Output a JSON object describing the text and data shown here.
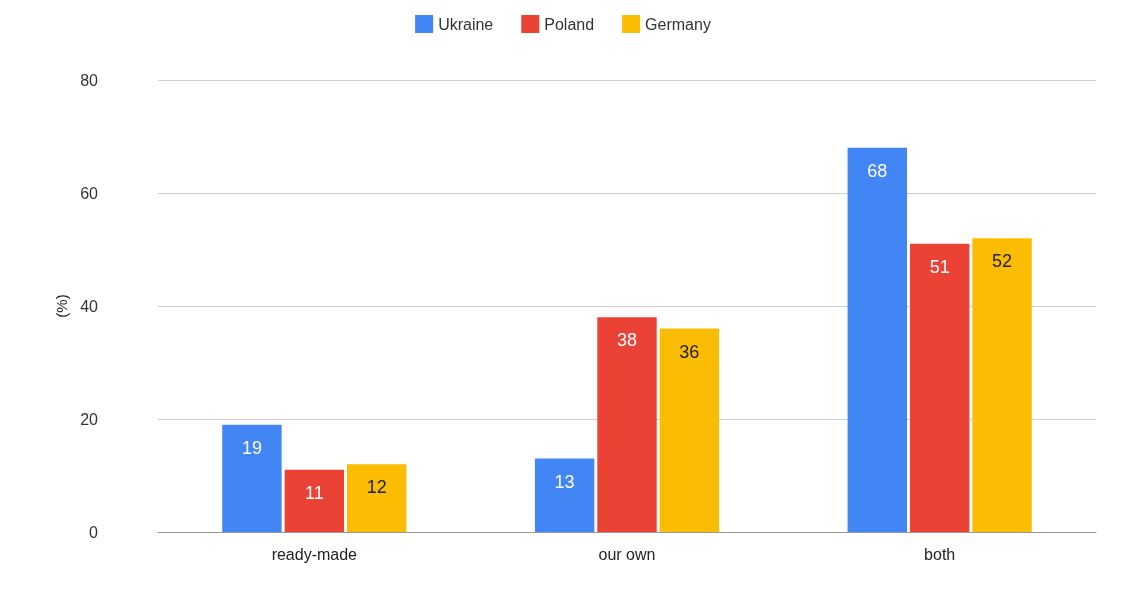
{
  "chart_data": {
    "type": "bar",
    "ylabel": "(%)",
    "categories": [
      "ready-made",
      "our own",
      "both"
    ],
    "series": [
      {
        "name": "Ukraine",
        "color": "#4285f4",
        "values": [
          19,
          13,
          68
        ]
      },
      {
        "name": "Poland",
        "color": "#ea4335",
        "values": [
          11,
          38,
          51
        ]
      },
      {
        "name": "Germany",
        "color": "#fbbc04",
        "values": [
          12,
          36,
          52
        ]
      }
    ],
    "ylim": [
      0,
      80
    ],
    "yticks": [
      0,
      20,
      40,
      60,
      80
    ],
    "grid": "y",
    "legend": "top",
    "data_labels": true
  }
}
